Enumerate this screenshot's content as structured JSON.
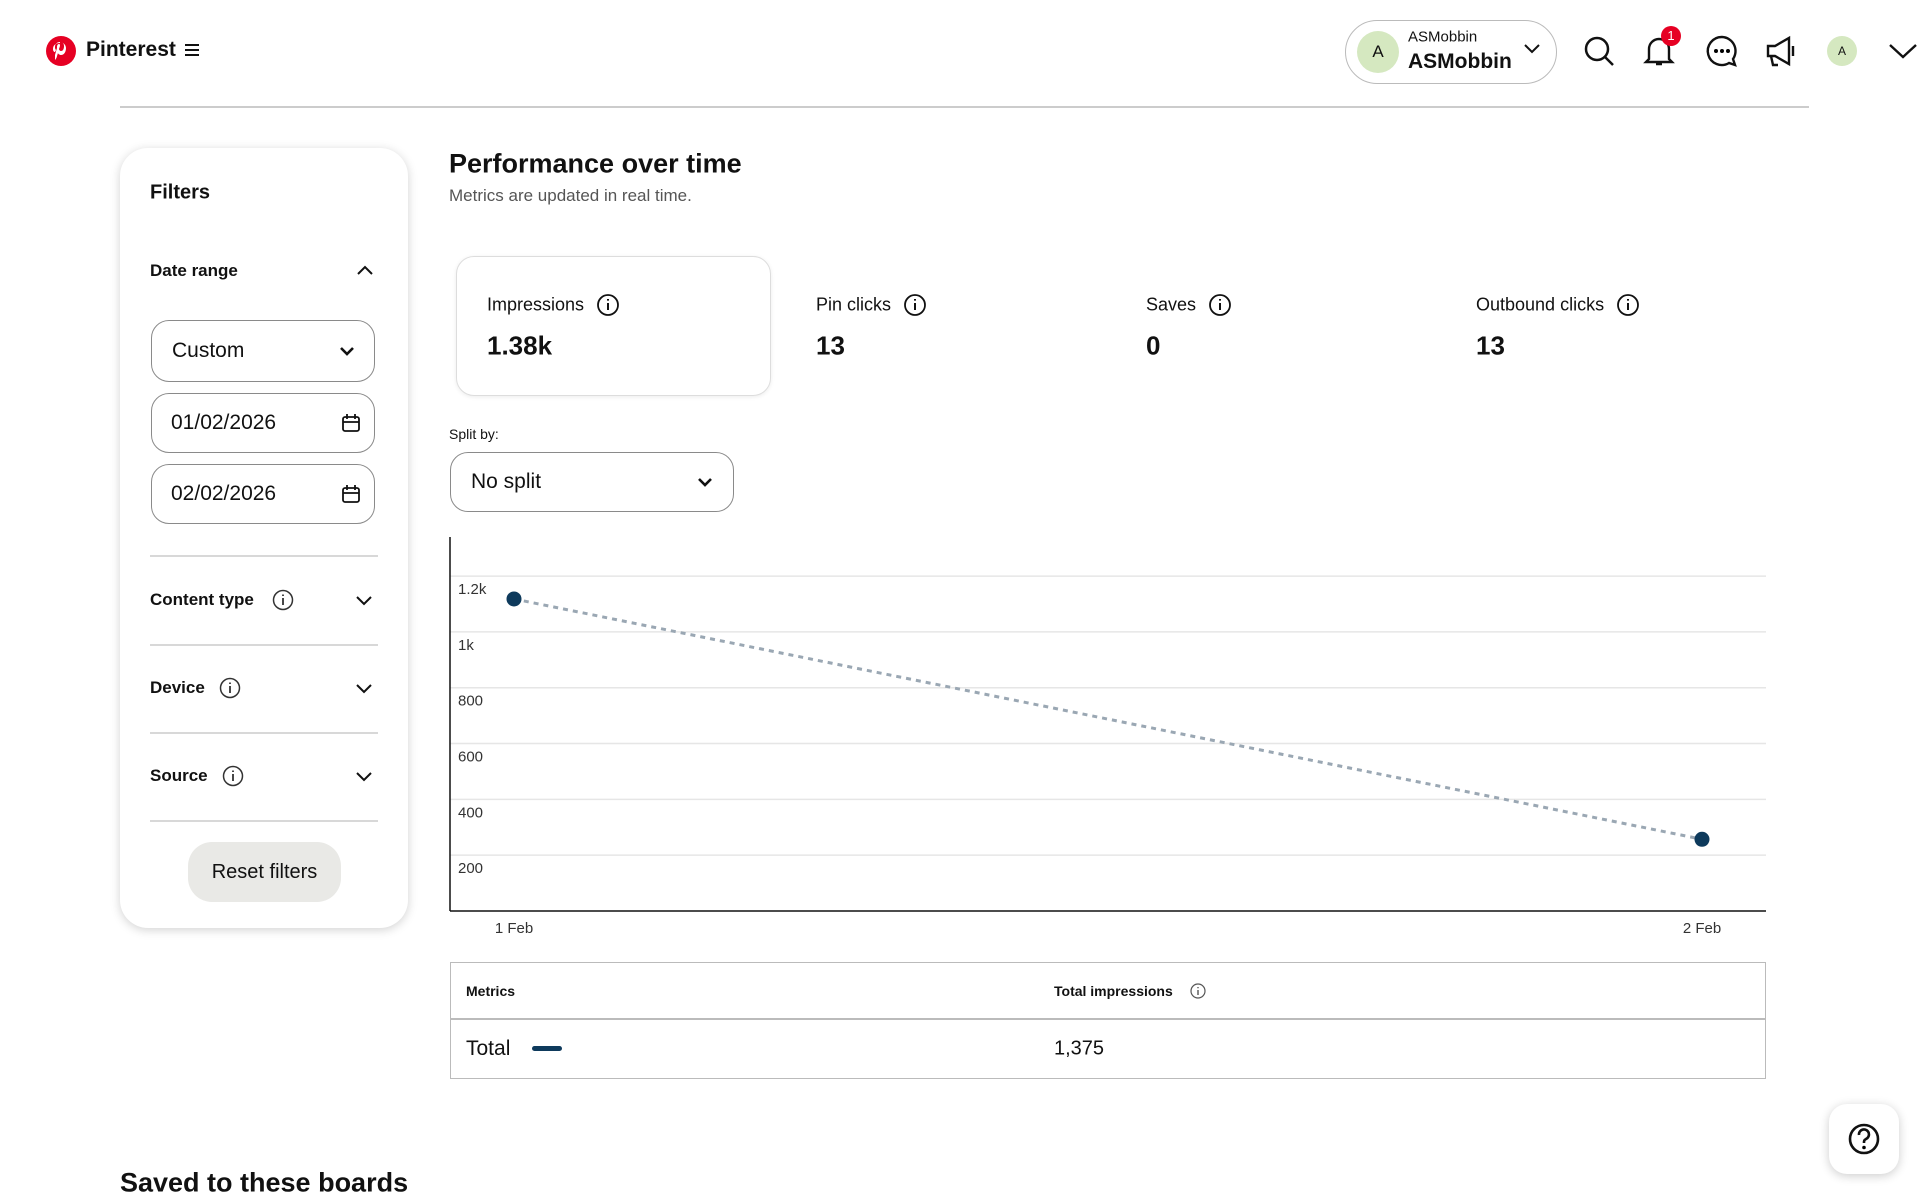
{
  "header": {
    "brand": "Pinterest",
    "account_small": "ASMobbin",
    "account_name": "ASMobbin",
    "avatar": "A",
    "notifications": "1",
    "avatar_small": "A"
  },
  "filters": {
    "title": "Filters",
    "date_range": "Date range",
    "range_select": "Custom",
    "start_date": "01/02/2026",
    "end_date": "02/02/2026",
    "content_type": "Content type",
    "device": "Device",
    "source": "Source",
    "reset": "Reset filters"
  },
  "performance": {
    "title": "Performance over time",
    "subtitle": "Metrics are updated in real time.",
    "metrics": [
      {
        "label": "Impressions",
        "value": "1.38k"
      },
      {
        "label": "Pin clicks",
        "value": "13"
      },
      {
        "label": "Saves",
        "value": "0"
      },
      {
        "label": "Outbound clicks",
        "value": "13"
      }
    ],
    "split_label": "Split by:",
    "split_select": "No split"
  },
  "chart_data": {
    "type": "line",
    "categories": [
      "1 Feb",
      "2 Feb"
    ],
    "series": [
      {
        "name": "Total",
        "color": "#0e3a5c",
        "values": [
          1118,
          257
        ]
      }
    ],
    "line_color": "#9aa7b3",
    "line_style": "dashed",
    "ylim": [
      0,
      1340
    ],
    "yticks": [
      200,
      400,
      600,
      800,
      {
        "value": 1000,
        "label": "1k"
      },
      {
        "value": 1200,
        "label": "1.2k"
      }
    ],
    "grid": true
  },
  "table": {
    "columns": [
      "Metrics",
      "Total impressions"
    ],
    "rows": [
      [
        "1,375"
      ]
    ]
  },
  "boards_title": "Saved to these boards"
}
